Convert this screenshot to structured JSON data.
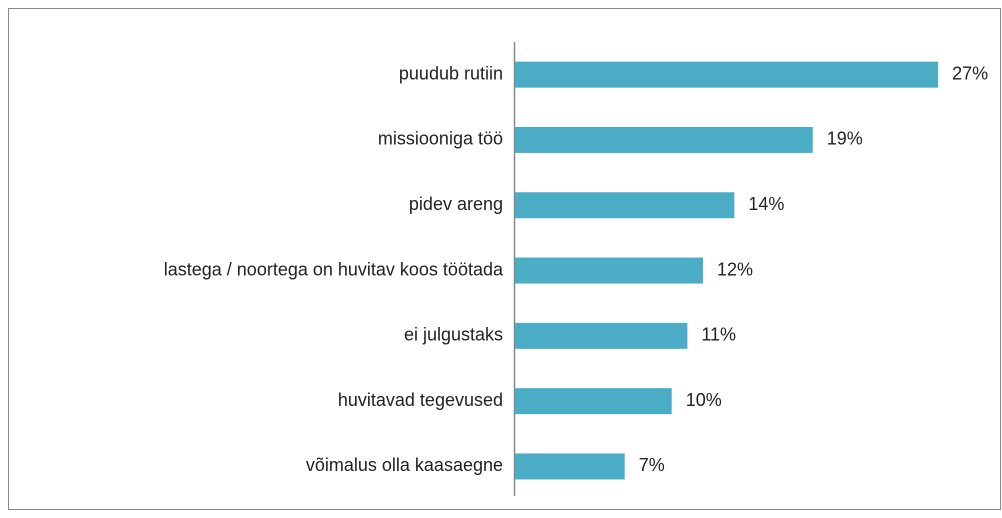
{
  "chart_data": {
    "type": "bar",
    "orientation": "horizontal",
    "categories": [
      "puudub rutiin",
      "missiooniga töö",
      "pidev areng",
      "lastega / noortega on huvitav koos töötada",
      "ei julgustaks",
      "huvitavad tegevused",
      "võimalus olla kaasaegne"
    ],
    "values": [
      27,
      19,
      14,
      12,
      11,
      10,
      7
    ],
    "value_labels": [
      "27%",
      "19%",
      "14%",
      "12%",
      "11%",
      "10%",
      "7%"
    ],
    "color": "#4bacc6"
  }
}
